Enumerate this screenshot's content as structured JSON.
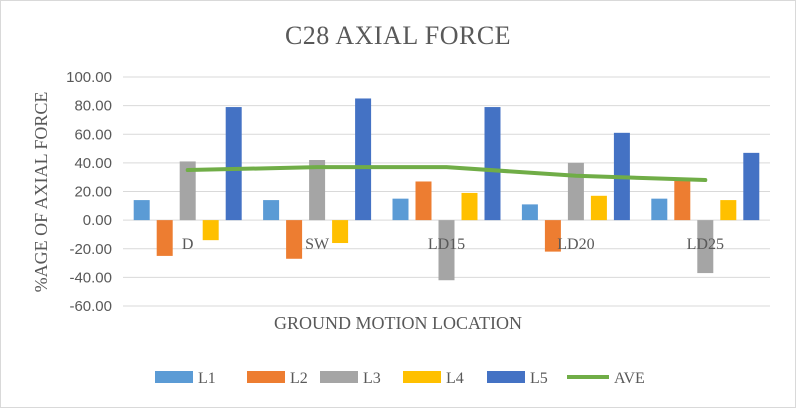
{
  "chart_data": {
    "type": "bar",
    "title": "C28 AXIAL FORCE",
    "xlabel": "GROUND MOTION LOCATION",
    "ylabel": "%AGE OF AXIAL FORCE",
    "ylim": [
      -60,
      100
    ],
    "ytick_step": 20,
    "ytick_labels": [
      "-60.00",
      "-40.00",
      "-20.00",
      "0.00",
      "20.00",
      "40.00",
      "60.00",
      "80.00",
      "100.00"
    ],
    "grid": true,
    "legend_position": "bottom",
    "categories": [
      "D",
      "SW",
      "LD15",
      "LD20",
      "LD25"
    ],
    "series": [
      {
        "name": "L1",
        "type": "bar",
        "color": "#5b9bd5",
        "values": [
          14,
          14,
          15,
          11,
          15
        ]
      },
      {
        "name": "L2",
        "type": "bar",
        "color": "#ed7d31",
        "values": [
          -25,
          -27,
          27,
          -22,
          28
        ]
      },
      {
        "name": "L3",
        "type": "bar",
        "color": "#a5a5a5",
        "values": [
          41,
          42,
          -42,
          40,
          -37
        ]
      },
      {
        "name": "L4",
        "type": "bar",
        "color": "#ffc000",
        "values": [
          -14,
          -16,
          19,
          17,
          14
        ]
      },
      {
        "name": "L5",
        "type": "bar",
        "color": "#4472c4",
        "values": [
          79,
          85,
          79,
          61,
          47
        ]
      },
      {
        "name": "AVE",
        "type": "line",
        "color": "#70ad47",
        "values": [
          35,
          37,
          37,
          31,
          28
        ]
      }
    ]
  }
}
